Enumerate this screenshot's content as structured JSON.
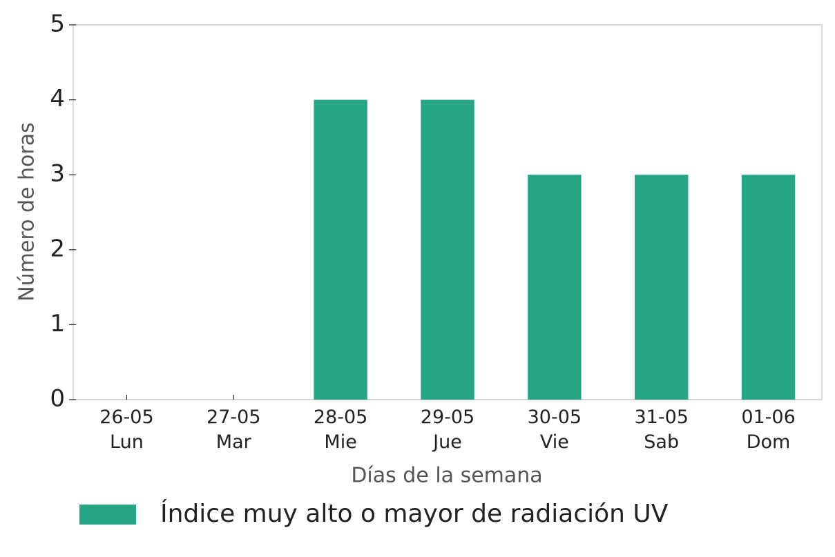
{
  "chart_data": {
    "type": "bar",
    "categories": [
      [
        "26-05",
        "Lun"
      ],
      [
        "27-05",
        "Mar"
      ],
      [
        "28-05",
        "Mie"
      ],
      [
        "29-05",
        "Jue"
      ],
      [
        "30-05",
        "Vie"
      ],
      [
        "31-05",
        "Sab"
      ],
      [
        "01-06",
        "Dom"
      ]
    ],
    "series": [
      {
        "name": "Índice muy alto o mayor de radiación UV",
        "color": "#27a686",
        "values": [
          0,
          0,
          4,
          4,
          3,
          3,
          3
        ]
      }
    ],
    "xlabel": "Días de la semana",
    "ylabel": "Número de horas",
    "ylim": [
      0,
      5
    ],
    "yticks": [
      0,
      1,
      2,
      3,
      4,
      5
    ],
    "grid": false,
    "legend": "bottom"
  }
}
